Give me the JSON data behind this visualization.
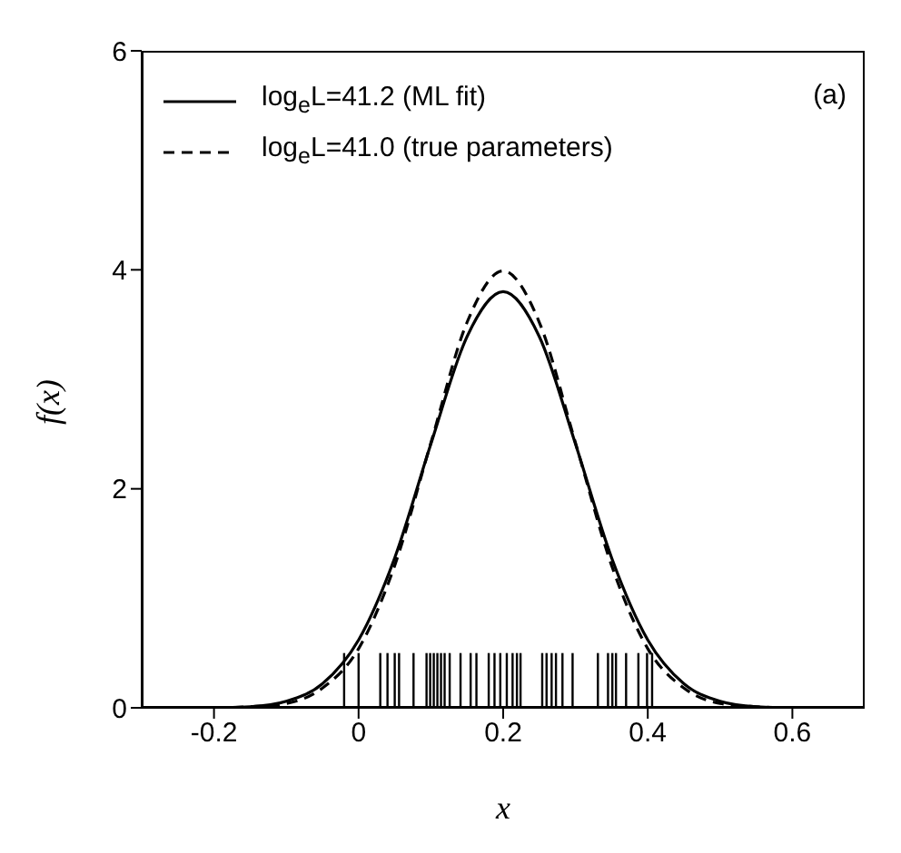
{
  "chart_data": {
    "type": "line",
    "xlabel": "x",
    "ylabel": "f(x)",
    "annotations": [
      "(a)"
    ],
    "legend": "top left",
    "xlim": [
      -0.3,
      0.7
    ],
    "ylim": [
      0,
      6
    ],
    "xticks": [
      -0.2,
      0,
      0.2,
      0.4,
      0.6
    ],
    "yticks": [
      0,
      2,
      4,
      6
    ],
    "x": [
      -0.3,
      -0.25,
      -0.2,
      -0.15,
      -0.1,
      -0.05,
      0,
      0.05,
      0.1,
      0.15,
      0.2,
      0.25,
      0.3,
      0.35,
      0.4,
      0.45,
      0.5,
      0.55,
      0.6,
      0.65,
      0.7
    ],
    "series": [
      {
        "name": "log$_{e}$L=41.2 (ML fit)",
        "color": "#000000",
        "line_style": "solid",
        "values": [
          0,
          0,
          0,
          0.01,
          0.06,
          0.22,
          0.62,
          1.37,
          2.41,
          3.39,
          3.8,
          3.39,
          2.41,
          1.37,
          0.62,
          0.22,
          0.06,
          0.01,
          0,
          0,
          0
        ]
      },
      {
        "name": "log$_{e}$L=41.0 (true parameters)",
        "color": "#000000",
        "line_style": "dashed",
        "values": [
          0,
          0,
          0,
          0.01,
          0.04,
          0.18,
          0.54,
          1.3,
          2.42,
          3.52,
          3.99,
          3.52,
          2.42,
          1.3,
          0.54,
          0.18,
          0.04,
          0.01,
          0,
          0,
          0
        ]
      },
      {
        "type": "bar",
        "color": "#000000",
        "x": [
          -0.02,
          0,
          0.03,
          0.04,
          0.05,
          0.056,
          0.076,
          0.094,
          0.099,
          0.104,
          0.109,
          0.114,
          0.119,
          0.126,
          0.141,
          0.155,
          0.163,
          0.18,
          0.188,
          0.196,
          0.205,
          0.213,
          0.219,
          0.224,
          0.254,
          0.26,
          0.267,
          0.273,
          0.282,
          0.296,
          0.331,
          0.345,
          0.351,
          0.356,
          0.37,
          0.387,
          0.399,
          0.406
        ],
        "values": [
          0.5,
          0.5,
          0.5,
          0.5,
          0.5,
          0.5,
          0.5,
          0.5,
          0.5,
          0.5,
          0.5,
          0.5,
          0.5,
          0.5,
          0.5,
          0.5,
          0.5,
          0.5,
          0.5,
          0.5,
          0.5,
          0.5,
          0.5,
          0.5,
          0.5,
          0.5,
          0.5,
          0.5,
          0.5,
          0.5,
          0.5,
          0.5,
          0.5,
          0.5,
          0.5,
          0.5,
          0.5,
          0.5
        ]
      }
    ]
  }
}
